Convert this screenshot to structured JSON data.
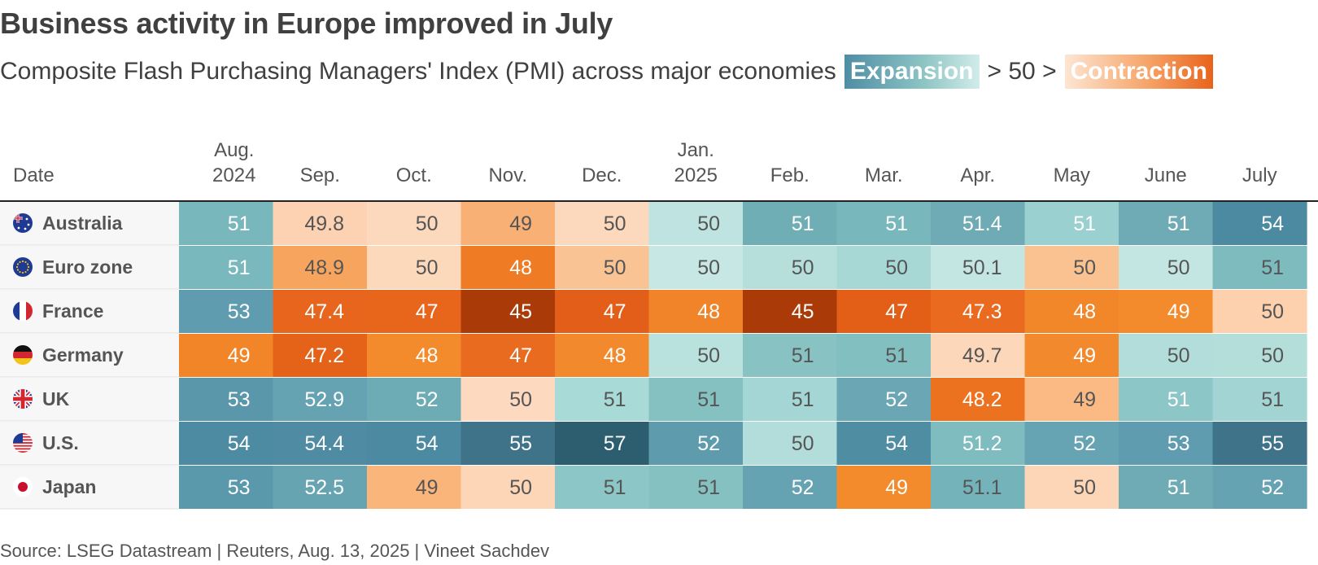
{
  "header": {
    "title": "Business activity in Europe improved in July",
    "subtitle": "Composite Flash Purchasing Managers' Index (PMI) across major economies",
    "legend_expansion": "Expansion",
    "legend_middle": "> 50 >",
    "legend_contraction": "Contraction"
  },
  "footer": {
    "source": "Source: LSEG Datastream | Reuters, Aug. 13, 2025 | Vineet Sachdev"
  },
  "colors": {
    "expansion_dark": "#2c5e6f",
    "neutral": "#fde5d2",
    "contraction_dark": "#a83a0a",
    "text": "#404040"
  },
  "chart_data": {
    "type": "heatmap",
    "title": "Business activity in Europe improved in July",
    "row_header": "Date",
    "columns": [
      [
        "Aug.",
        "2024"
      ],
      [
        "Sep."
      ],
      [
        "Oct."
      ],
      [
        "Nov."
      ],
      [
        "Dec."
      ],
      [
        "Jan.",
        "2025"
      ],
      [
        "Feb."
      ],
      [
        "Mar."
      ],
      [
        "Apr."
      ],
      [
        "May"
      ],
      [
        "June"
      ],
      [
        "July"
      ]
    ],
    "rows": [
      {
        "name": "Australia",
        "flag": "australia-flag",
        "values": [
          "51",
          "49.8",
          "50",
          "49",
          "50",
          "50",
          "51",
          "51",
          "51.4",
          "51",
          "51",
          "54"
        ]
      },
      {
        "name": "Euro zone",
        "flag": "eu-flag",
        "values": [
          "51",
          "48.9",
          "50",
          "48",
          "50",
          "50",
          "50",
          "50",
          "50.1",
          "50",
          "50",
          "51"
        ]
      },
      {
        "name": "France",
        "flag": "france-flag",
        "values": [
          "53",
          "47.4",
          "47",
          "45",
          "47",
          "48",
          "45",
          "47",
          "47.3",
          "48",
          "49",
          "50"
        ]
      },
      {
        "name": "Germany",
        "flag": "germany-flag",
        "values": [
          "49",
          "47.2",
          "48",
          "47",
          "48",
          "50",
          "51",
          "51",
          "49.7",
          "49",
          "50",
          "50"
        ]
      },
      {
        "name": "UK",
        "flag": "uk-flag",
        "values": [
          "53",
          "52.9",
          "52",
          "50",
          "51",
          "51",
          "51",
          "52",
          "48.2",
          "49",
          "51",
          "51"
        ]
      },
      {
        "name": "U.S.",
        "flag": "us-flag",
        "values": [
          "54",
          "54.4",
          "54",
          "55",
          "57",
          "52",
          "50",
          "54",
          "51.2",
          "52",
          "53",
          "55"
        ]
      },
      {
        "name": "Japan",
        "flag": "japan-flag",
        "values": [
          "53",
          "52.5",
          "49",
          "50",
          "51",
          "51",
          "52",
          "49",
          "51.1",
          "50",
          "51",
          "52"
        ]
      }
    ],
    "cell_colors": [
      [
        "#78b8bd",
        "#fcd2b2",
        "#fcd8bc",
        "#f9b075",
        "#fcd8bc",
        "#bfe3e1",
        "#70aeb6",
        "#78b8bd",
        "#6fabb4",
        "#9ad1d0",
        "#6fabb4",
        "#4c8aa1"
      ],
      [
        "#79b9be",
        "#f7a55e",
        "#fdd9bc",
        "#ef7b25",
        "#fac394",
        "#c6e7e4",
        "#b6dfdc",
        "#a7d8d6",
        "#c4e6e3",
        "#fac291",
        "#c4e6e3",
        "#7dbbbf"
      ],
      [
        "#5f9caf",
        "#e8651d",
        "#e8651c",
        "#aa3b09",
        "#e35e18",
        "#f18428",
        "#aa3b09",
        "#e35f18",
        "#ea6a1f",
        "#f18729",
        "#f38b2d",
        "#fdd0ae"
      ],
      [
        "#f28527",
        "#e56219",
        "#f38b2d",
        "#e86b20",
        "#f28a2d",
        "#b9e1de",
        "#88c2c3",
        "#81bfc1",
        "#fdd7b9",
        "#f28a2d",
        "#b2ddda",
        "#b4deda"
      ],
      [
        "#5a97ab",
        "#66a3b2",
        "#6eacb5",
        "#fddabf",
        "#a8dad7",
        "#86c1c2",
        "#a3d6d4",
        "#6aa6b3",
        "#ec721f",
        "#fbba84",
        "#8dc6c6",
        "#a1d4d2"
      ],
      [
        "#4d8ba2",
        "#4f8ca3",
        "#4c8aa1",
        "#3e7389",
        "#2c5e6f",
        "#5e9cad",
        "#b2ddda",
        "#4f8da3",
        "#7ebcc0",
        "#67a4b3",
        "#5f9caf",
        "#3e7389"
      ],
      [
        "#5a99ac",
        "#67a4b2",
        "#fab57a",
        "#fdd6b7",
        "#8dc6c6",
        "#86c1c2",
        "#66a3b2",
        "#f38a2b",
        "#75b3bb",
        "#fdd6b7",
        "#6fabb4",
        "#65a3b3"
      ]
    ],
    "cell_text_colors": [
      [
        "#ffffff",
        "#555555",
        "#555555",
        "#555555",
        "#555555",
        "#555555",
        "#ffffff",
        "#ffffff",
        "#ffffff",
        "#ffffff",
        "#ffffff",
        "#ffffff"
      ],
      [
        "#ffffff",
        "#555555",
        "#555555",
        "#ffffff",
        "#555555",
        "#555555",
        "#555555",
        "#555555",
        "#555555",
        "#555555",
        "#555555",
        "#555555"
      ],
      [
        "#ffffff",
        "#ffffff",
        "#ffffff",
        "#ffffff",
        "#ffffff",
        "#ffffff",
        "#ffffff",
        "#ffffff",
        "#ffffff",
        "#ffffff",
        "#ffffff",
        "#555555"
      ],
      [
        "#ffffff",
        "#ffffff",
        "#ffffff",
        "#ffffff",
        "#ffffff",
        "#555555",
        "#555555",
        "#555555",
        "#555555",
        "#ffffff",
        "#555555",
        "#555555"
      ],
      [
        "#ffffff",
        "#ffffff",
        "#ffffff",
        "#555555",
        "#555555",
        "#555555",
        "#555555",
        "#ffffff",
        "#ffffff",
        "#555555",
        "#ffffff",
        "#555555"
      ],
      [
        "#ffffff",
        "#ffffff",
        "#ffffff",
        "#ffffff",
        "#ffffff",
        "#ffffff",
        "#555555",
        "#ffffff",
        "#ffffff",
        "#ffffff",
        "#ffffff",
        "#ffffff"
      ],
      [
        "#ffffff",
        "#ffffff",
        "#555555",
        "#555555",
        "#555555",
        "#555555",
        "#ffffff",
        "#ffffff",
        "#555555",
        "#555555",
        "#ffffff",
        "#ffffff"
      ]
    ]
  }
}
